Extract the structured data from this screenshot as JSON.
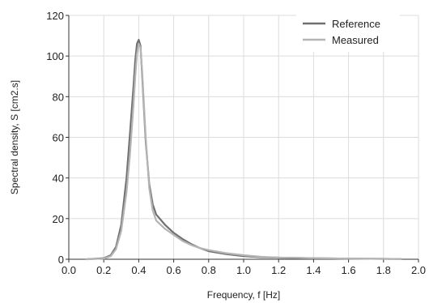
{
  "chart_data": {
    "type": "line",
    "xlabel": "Frequency, f [Hz]",
    "ylabel": "Spectral density, S [cm2.s]",
    "xlim": [
      0.0,
      2.0
    ],
    "ylim": [
      0,
      120
    ],
    "x_ticks": [
      "0.0",
      "0.2",
      "0.4",
      "0.6",
      "0.8",
      "1.0",
      "1.2",
      "1.4",
      "1.6",
      "1.8",
      "2.0"
    ],
    "y_ticks": [
      "0",
      "20",
      "40",
      "60",
      "80",
      "100",
      "120"
    ],
    "grid": true,
    "legend_position": "top-right",
    "series": [
      {
        "name": "Reference",
        "color": "#707070",
        "x": [
          0.1,
          0.2,
          0.24,
          0.27,
          0.3,
          0.33,
          0.35,
          0.37,
          0.38,
          0.39,
          0.4,
          0.41,
          0.42,
          0.44,
          0.46,
          0.48,
          0.5,
          0.55,
          0.6,
          0.65,
          0.7,
          0.75,
          0.8,
          0.9,
          1.0,
          1.1,
          1.2,
          1.4,
          1.6,
          1.8,
          1.9
        ],
        "y": [
          0,
          0.5,
          2,
          6,
          17,
          40,
          62,
          85,
          98,
          106,
          108,
          105,
          90,
          58,
          37,
          27,
          22,
          17,
          13,
          10,
          7.5,
          5.5,
          4,
          2.5,
          1.5,
          1,
          0.8,
          0.5,
          0.3,
          0.2,
          0.1
        ]
      },
      {
        "name": "Measured",
        "color": "#b4b4b4",
        "x": [
          0.1,
          0.2,
          0.24,
          0.27,
          0.3,
          0.33,
          0.35,
          0.37,
          0.38,
          0.39,
          0.4,
          0.41,
          0.42,
          0.44,
          0.46,
          0.48,
          0.5,
          0.55,
          0.6,
          0.65,
          0.7,
          0.75,
          0.8,
          0.9,
          1.0,
          1.1,
          1.2,
          1.4,
          1.6,
          1.8,
          1.9
        ],
        "y": [
          0,
          0.3,
          1.5,
          5,
          14,
          33,
          52,
          76,
          90,
          101,
          106,
          104,
          92,
          60,
          35,
          24,
          19,
          15,
          12,
          9,
          7,
          5.5,
          4.5,
          3,
          2,
          1.2,
          0.8,
          0.5,
          0.3,
          0.2,
          0.1
        ]
      }
    ]
  }
}
